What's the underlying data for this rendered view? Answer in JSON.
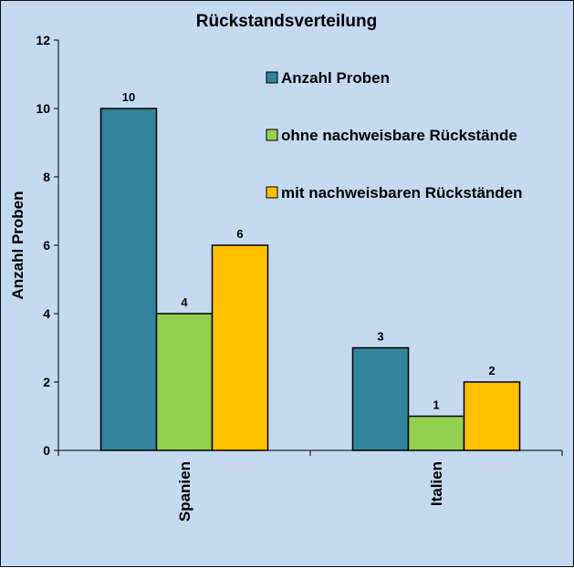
{
  "chart_data": {
    "type": "bar",
    "title": "Rückstandsverteilung",
    "xlabel": "",
    "ylabel": "Anzahl Proben",
    "categories": [
      "Spanien",
      "Italien"
    ],
    "ylim": [
      0,
      12
    ],
    "yticks": [
      0,
      2,
      4,
      6,
      8,
      10,
      12
    ],
    "grid": false,
    "legend_position": "top-right",
    "series": [
      {
        "name": "Anzahl Proben",
        "values": [
          10,
          3
        ],
        "color": "#31849b"
      },
      {
        "name": "ohne nachweisbare Rückstände",
        "values": [
          4,
          1
        ],
        "color": "#92d050"
      },
      {
        "name": "mit nachweisbaren Rückständen",
        "values": [
          6,
          2
        ],
        "color": "#ffc000"
      }
    ]
  },
  "colors": {
    "background": "#c5d9f1",
    "plot_area": "#c5d9f1",
    "bar_stroke": "#000000"
  }
}
